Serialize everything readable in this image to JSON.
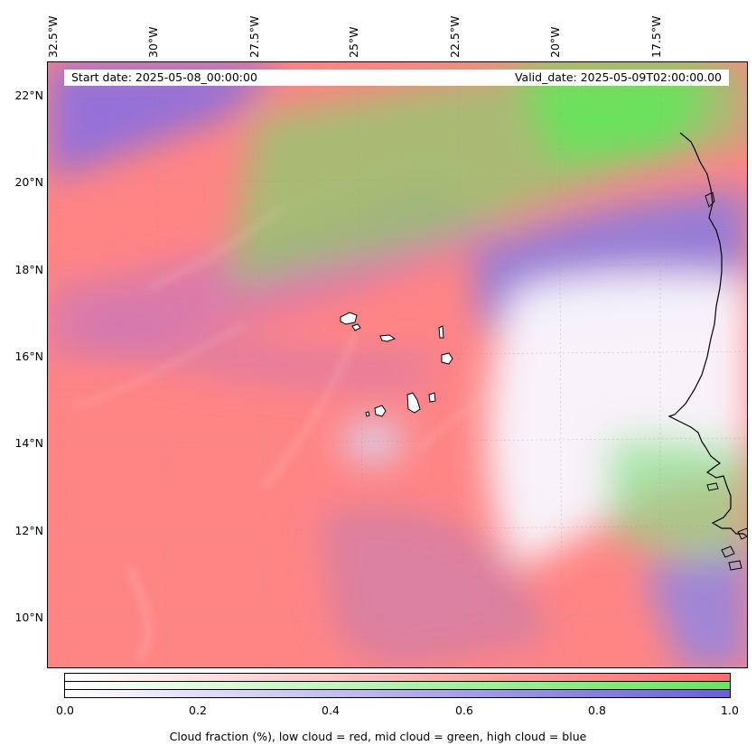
{
  "map": {
    "longitude_labels": [
      "32.5°W",
      "30°W",
      "27.5°W",
      "25°W",
      "22.5°W",
      "20°W",
      "17.5°W"
    ],
    "latitude_labels": [
      "22°N",
      "20°N",
      "18°N",
      "16°N",
      "14°N",
      "12°N",
      "10°N"
    ],
    "start_date_text": "Start date: 2025-05-08_00:00:00",
    "valid_date_text": "Valid_date: 2025-05-09T02:00:00.00",
    "colors": {
      "low_cloud": "#ff7a7a",
      "mid_cloud": "#6ee86e",
      "high_cloud": "#7a6ee0",
      "coastline": "#000000"
    }
  },
  "colorbar": {
    "ticks": [
      "0.0",
      "0.2",
      "0.4",
      "0.6",
      "0.8",
      "1.0"
    ],
    "label": "Cloud fraction (%), low cloud = red, mid cloud = green, high cloud = blue",
    "bars": [
      {
        "name": "low",
        "color": "#ff6b6b"
      },
      {
        "name": "mid",
        "color": "#66e65c"
      },
      {
        "name": "high",
        "color": "#6a5fd6"
      }
    ]
  }
}
